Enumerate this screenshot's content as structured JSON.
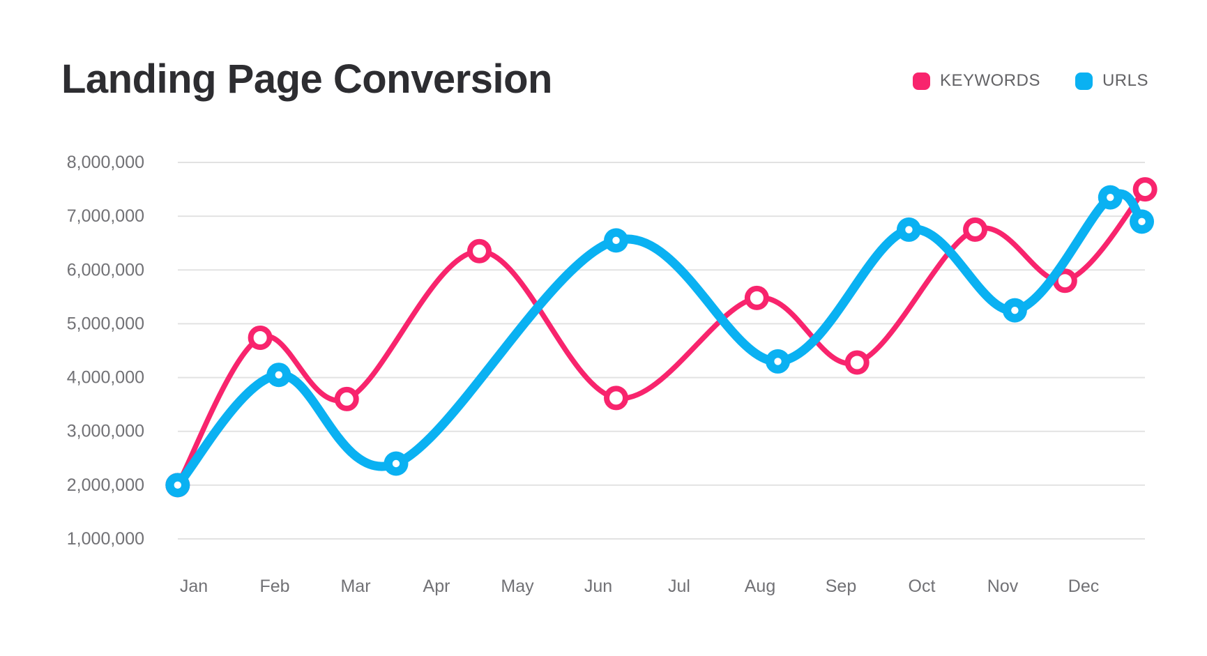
{
  "title": "Landing Page Conversion",
  "legend": {
    "items": [
      {
        "label": "KEYWORDS",
        "color": "#f8246d"
      },
      {
        "label": "URLS",
        "color": "#0ab1f2"
      }
    ]
  },
  "chart_data": {
    "type": "line",
    "title": "Landing Page Conversion",
    "categories": [
      "Jan",
      "Feb",
      "Mar",
      "Apr",
      "May",
      "Jun",
      "Jul",
      "Aug",
      "Sep",
      "Oct",
      "Nov",
      "Dec"
    ],
    "xlabel": "",
    "ylabel": "",
    "ylim": [
      1000000,
      8000000
    ],
    "y_tick_labels": [
      "1,000,000",
      "2,000,000",
      "3,000,000",
      "4,000,000",
      "5,000,000",
      "6,000,000",
      "7,000,000",
      "8,000,000"
    ],
    "grid": "horizontal",
    "legend_position": "top-right",
    "curve": "smooth",
    "x_unit": "month-index (0 = Jan; fractional = marker sits between month ticks)",
    "series": [
      {
        "name": "KEYWORDS",
        "color": "#f8246d",
        "line_width": 7.5,
        "marker": "open-circle",
        "points": [
          {
            "x": -0.2,
            "y": 2000000
          },
          {
            "x": 0.82,
            "y": 4740000
          },
          {
            "x": 1.89,
            "y": 3600000
          },
          {
            "x": 3.53,
            "y": 6350000
          },
          {
            "x": 5.22,
            "y": 3620000
          },
          {
            "x": 6.96,
            "y": 5480000
          },
          {
            "x": 8.2,
            "y": 4280000
          },
          {
            "x": 9.66,
            "y": 6750000
          },
          {
            "x": 10.77,
            "y": 5800000
          },
          {
            "x": 11.76,
            "y": 7500000
          }
        ]
      },
      {
        "name": "URLS",
        "color": "#0ab1f2",
        "line_width": 13,
        "marker": "filled-circle",
        "points": [
          {
            "x": -0.2,
            "y": 2000000
          },
          {
            "x": 1.05,
            "y": 4050000
          },
          {
            "x": 2.5,
            "y": 2400000
          },
          {
            "x": 5.22,
            "y": 6550000
          },
          {
            "x": 7.22,
            "y": 4300000
          },
          {
            "x": 8.84,
            "y": 6750000
          },
          {
            "x": 10.15,
            "y": 5250000
          },
          {
            "x": 11.33,
            "y": 7350000
          },
          {
            "x": 11.72,
            "y": 6900000
          }
        ]
      }
    ]
  }
}
